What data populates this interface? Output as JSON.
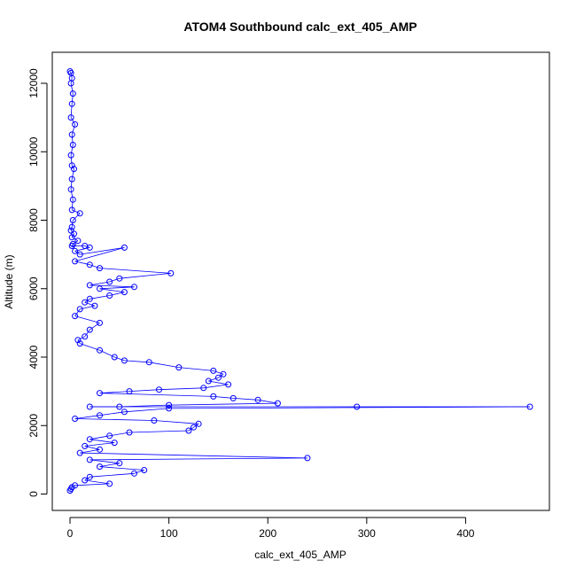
{
  "chart_data": {
    "type": "scatter",
    "title": "ATOM4 Southbound calc_ext_405_AMP",
    "xlabel": "calc_ext_405_AMP",
    "ylabel": "Altitude (m)",
    "xlim": [
      0,
      480
    ],
    "ylim": [
      0,
      12500
    ],
    "x_ticks": [
      0,
      100,
      200,
      300,
      400
    ],
    "y_ticks": [
      0,
      2000,
      4000,
      6000,
      8000,
      10000,
      12000
    ],
    "grid": false,
    "legend": "none",
    "style": {
      "color": "#0000ff",
      "marker": "open-circle",
      "lines": true
    },
    "x": [
      0,
      1,
      2,
      1,
      3,
      2,
      1,
      5,
      2,
      3,
      1,
      2,
      4,
      2,
      1,
      3,
      2,
      10,
      3,
      2,
      1,
      4,
      2,
      8,
      3,
      2,
      15,
      20,
      5,
      10,
      55,
      5,
      20,
      30,
      102,
      50,
      40,
      20,
      65,
      30,
      55,
      40,
      20,
      15,
      25,
      10,
      5,
      30,
      20,
      15,
      8,
      10,
      30,
      45,
      55,
      80,
      110,
      145,
      155,
      150,
      140,
      160,
      135,
      90,
      60,
      30,
      145,
      165,
      190,
      210,
      100,
      50,
      20,
      290,
      465,
      100,
      55,
      30,
      5,
      85,
      130,
      125,
      120,
      60,
      40,
      20,
      45,
      15,
      30,
      10,
      240,
      20,
      50,
      30,
      75,
      65,
      20,
      15,
      40,
      5,
      2,
      1,
      0
    ],
    "y": [
      12350,
      12300,
      12150,
      12000,
      11700,
      11400,
      11000,
      10800,
      10500,
      10200,
      9900,
      9600,
      9500,
      9200,
      8900,
      8600,
      8300,
      8200,
      8000,
      7800,
      7700,
      7600,
      7500,
      7400,
      7300,
      7250,
      7250,
      7200,
      7100,
      7000,
      7200,
      6800,
      6700,
      6600,
      6450,
      6300,
      6200,
      6100,
      6050,
      6000,
      5900,
      5800,
      5700,
      5600,
      5500,
      5400,
      5200,
      5000,
      4800,
      4600,
      4500,
      4400,
      4200,
      4000,
      3900,
      3850,
      3700,
      3600,
      3500,
      3400,
      3300,
      3200,
      3100,
      3050,
      3000,
      2950,
      2850,
      2800,
      2750,
      2650,
      2600,
      2550,
      2550,
      2550,
      2550,
      2500,
      2400,
      2300,
      2200,
      2150,
      2050,
      1950,
      1850,
      1800,
      1700,
      1600,
      1500,
      1400,
      1300,
      1200,
      1050,
      1000,
      900,
      800,
      700,
      600,
      500,
      400,
      300,
      250,
      200,
      150,
      100
    ]
  }
}
